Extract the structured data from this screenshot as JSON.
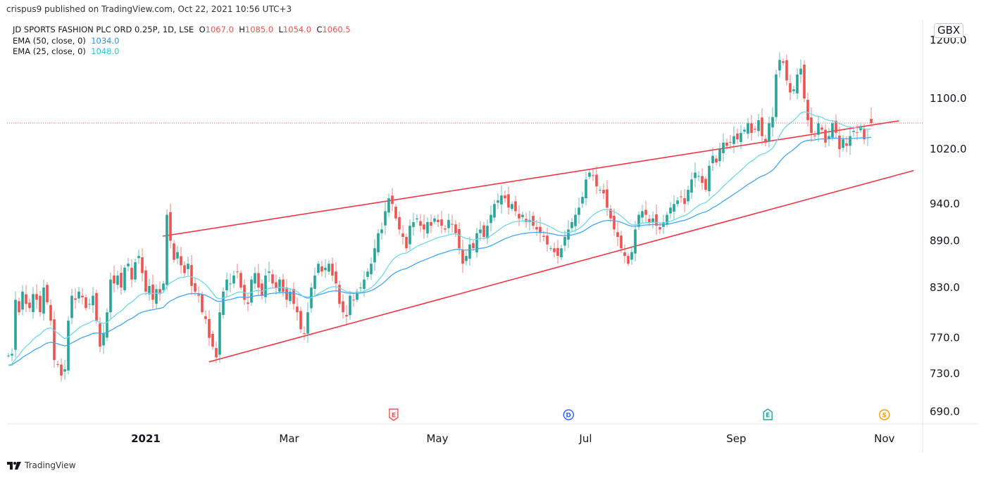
{
  "header": {
    "published": "crispus9 published on TradingView.com, Oct 22, 2021 10:56 UTC+3"
  },
  "legend": {
    "symbol": "JD SPORTS FASHION PLC ORD 0.25P, 1D, LSE",
    "o_label": "O",
    "o": "1067.0",
    "h_label": "H",
    "h": "1085.0",
    "l_label": "L",
    "l": "1054.0",
    "c_label": "C",
    "c": "1060.5",
    "ema50_label": "EMA (50, close, 0)",
    "ema50": "1034.0",
    "ema25_label": "EMA (25, close, 0)",
    "ema25": "1048.0"
  },
  "currency": "GBX",
  "footer": {
    "brand": "TradingView"
  },
  "colors": {
    "up": "#26a69a",
    "down": "#ef5350",
    "ema50": "#42a5f5",
    "ema25": "#6fd8e8",
    "trendline": "#f23645",
    "last_price": "#ef5350"
  },
  "events": [
    {
      "letter": "E",
      "type": "earnings",
      "color": "#ef5350",
      "date": "2021-04-13"
    },
    {
      "letter": "D",
      "type": "dividend",
      "color": "#2962ff",
      "date": "2021-06-24"
    },
    {
      "letter": "E",
      "type": "earnings",
      "color": "#26a69a",
      "date": "2021-09-14"
    },
    {
      "letter": "S",
      "type": "split",
      "color": "#ff9800",
      "date": "2021-11-01"
    }
  ],
  "chart_data": {
    "type": "candlestick",
    "scale": "log",
    "ylim": [
      660,
      1230
    ],
    "grid": false,
    "price_ticks": [
      1200.0,
      1100.0,
      1020.0,
      940.0,
      890.0,
      830.0,
      770.0,
      730.0,
      690.0
    ],
    "price_tick_labels": [
      "1200.0",
      "1100.0",
      "1020.0",
      "940.0",
      "890.0",
      "830.0",
      "770.0",
      "730.0",
      "690.0"
    ],
    "time_ticks": [
      {
        "label": "2021",
        "date": "2021-01-01",
        "bold": true
      },
      {
        "label": "Mar",
        "date": "2021-03-01"
      },
      {
        "label": "May",
        "date": "2021-05-01"
      },
      {
        "label": "Jul",
        "date": "2021-07-01"
      },
      {
        "label": "Sep",
        "date": "2021-09-01"
      },
      {
        "label": "Nov",
        "date": "2021-11-01"
      }
    ],
    "closes": [
      750,
      752,
      815,
      800,
      825,
      810,
      805,
      822,
      815,
      800,
      830,
      812,
      790,
      745,
      740,
      728,
      735,
      790,
      820,
      815,
      825,
      818,
      805,
      810,
      820,
      790,
      760,
      775,
      800,
      840,
      835,
      845,
      830,
      855,
      860,
      840,
      862,
      870,
      848,
      825,
      832,
      815,
      828,
      822,
      835,
      925,
      890,
      865,
      875,
      858,
      848,
      860,
      832,
      825,
      820,
      800,
      792,
      770,
      760,
      748,
      800,
      825,
      840,
      835,
      845,
      850,
      830,
      815,
      810,
      840,
      848,
      830,
      820,
      845,
      850,
      835,
      830,
      840,
      825,
      815,
      825,
      810,
      800,
      780,
      775,
      800,
      830,
      845,
      860,
      850,
      855,
      860,
      845,
      835,
      810,
      800,
      795,
      820,
      815,
      825,
      830,
      840,
      850,
      860,
      880,
      900,
      905,
      930,
      948,
      940,
      920,
      905,
      895,
      880,
      910,
      915,
      920,
      910,
      905,
      915,
      910,
      920,
      915,
      910,
      905,
      918,
      912,
      900,
      880,
      860,
      870,
      885,
      880,
      900,
      905,
      895,
      910,
      925,
      940,
      945,
      952,
      948,
      935,
      940,
      930,
      920,
      925,
      915,
      918,
      910,
      905,
      900,
      895,
      885,
      880,
      875,
      870,
      880,
      895,
      905,
      915,
      925,
      935,
      950,
      975,
      985,
      980,
      965,
      960,
      955,
      935,
      920,
      905,
      895,
      880,
      870,
      860,
      875,
      905,
      925,
      930,
      925,
      915,
      920,
      910,
      905,
      915,
      925,
      935,
      940,
      945,
      950,
      940,
      960,
      975,
      985,
      980,
      970,
      960,
      995,
      1010,
      1000,
      1020,
      1030,
      1025,
      1030,
      1040,
      1035,
      1045,
      1050,
      1060,
      1045,
      1050,
      1065,
      1040,
      1030,
      1060,
      1070,
      1140,
      1165,
      1160,
      1130,
      1110,
      1115,
      1140,
      1150,
      1100,
      1065,
      1045,
      1040,
      1060,
      1050,
      1030,
      1040,
      1060,
      1045,
      1020,
      1035,
      1025,
      1040,
      1048,
      1045,
      1055,
      1035,
      1038
    ],
    "last_candle": {
      "open": 1067.0,
      "high": 1085.0,
      "low": 1054.0,
      "close": 1060.5
    },
    "last_price": 1060.5,
    "ema_periods": [
      50,
      25
    ],
    "trendlines": [
      {
        "from": {
          "date": "2021-01-08",
          "price": 896
        },
        "to": {
          "date": "2021-11-07",
          "price": 1064
        }
      },
      {
        "from": {
          "date": "2021-01-27",
          "price": 743
        },
        "to": {
          "date": "2021-11-13",
          "price": 988
        }
      }
    ]
  }
}
